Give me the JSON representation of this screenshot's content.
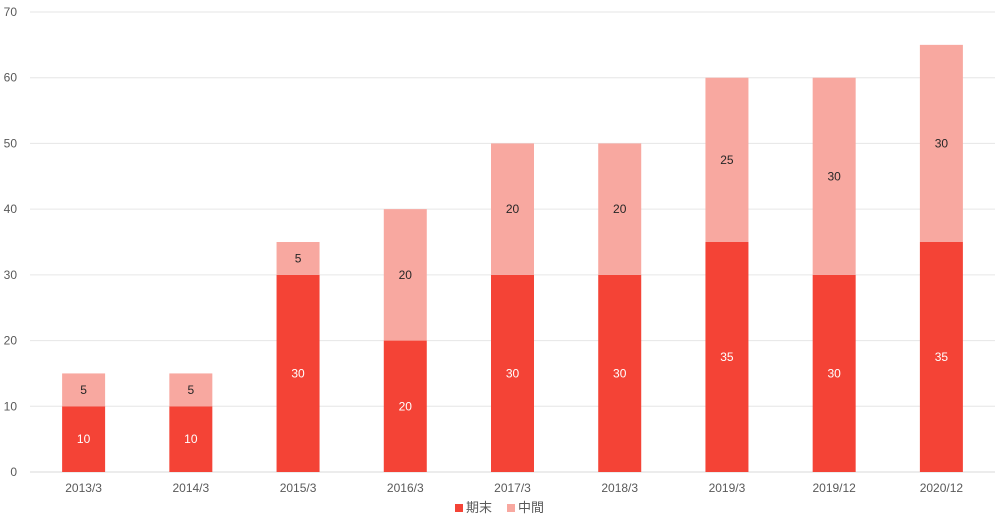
{
  "chart_data": {
    "type": "bar",
    "stacked": true,
    "categories": [
      "2013/3",
      "2014/3",
      "2015/3",
      "2016/3",
      "2017/3",
      "2018/3",
      "2019/3",
      "2019/12",
      "2020/12"
    ],
    "series": [
      {
        "name": "期末",
        "values": [
          10,
          10,
          30,
          20,
          30,
          30,
          35,
          30,
          35
        ],
        "color": "#f44336",
        "label_color": "#ffffff"
      },
      {
        "name": "中間",
        "values": [
          5,
          5,
          5,
          20,
          20,
          20,
          25,
          30,
          30
        ],
        "color": "#f8a8a0",
        "label_color": "#262626"
      }
    ],
    "ylim": [
      0,
      70
    ],
    "yticks": [
      0,
      10,
      20,
      30,
      40,
      50,
      60,
      70
    ],
    "grid": true,
    "legend_position": "bottom"
  }
}
